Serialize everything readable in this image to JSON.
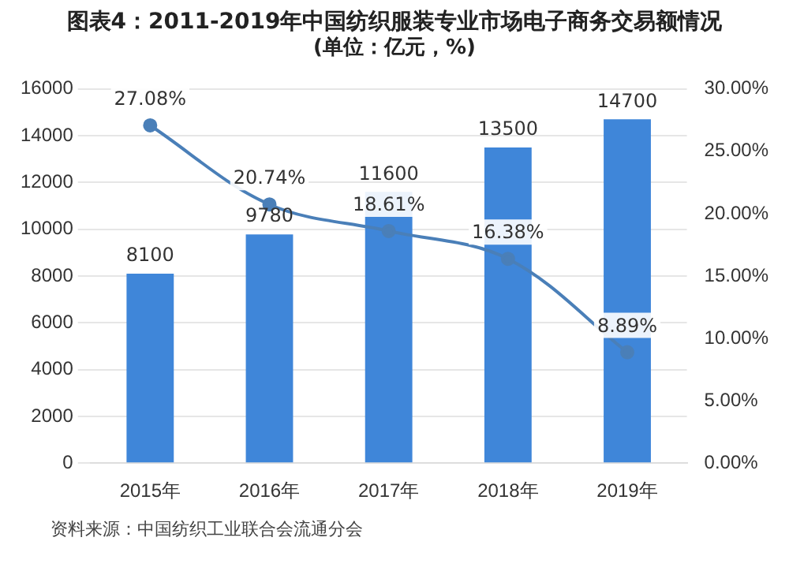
{
  "chart_data": {
    "type": "bar",
    "title": "图表4：2011-2019年中国纺织服装专业市场电子商务交易额情况",
    "subtitle": "(单位：亿元，%)",
    "categories": [
      "2015年",
      "2016年",
      "2017年",
      "2018年",
      "2019年"
    ],
    "series": [
      {
        "color": "#3f86d9",
        "values": [
          8100,
          9780,
          11600,
          13500,
          14700
        ],
        "value_labels": [
          "8100",
          "9780",
          "11600",
          "13500",
          "14700"
        ]
      },
      {
        "type": "line",
        "axis": "y2",
        "color": "#4a7fb8",
        "values": [
          27.08,
          20.74,
          18.61,
          16.38,
          8.89
        ],
        "value_labels": [
          "27.08%",
          "20.74%",
          "18.61%",
          "16.38%",
          "8.89%"
        ]
      }
    ],
    "ylim": [
      0,
      16000
    ],
    "yticks": [
      0,
      2000,
      4000,
      6000,
      8000,
      10000,
      12000,
      14000,
      16000
    ],
    "y2lim": [
      0,
      30
    ],
    "y2ticks": [
      {
        "value": 0,
        "label": "0.00%"
      },
      {
        "value": 5,
        "label": "5.00%"
      },
      {
        "value": 10,
        "label": "10.00%"
      },
      {
        "value": 15,
        "label": "15.00%"
      },
      {
        "value": 20,
        "label": "20.00%"
      },
      {
        "value": 25,
        "label": "25.00%"
      },
      {
        "value": 30,
        "label": "30.00%"
      }
    ],
    "grid": "y",
    "marker": "circle",
    "legend": false,
    "annotations": [
      "资料来源：中国纺织工业联合会流通分会"
    ]
  }
}
